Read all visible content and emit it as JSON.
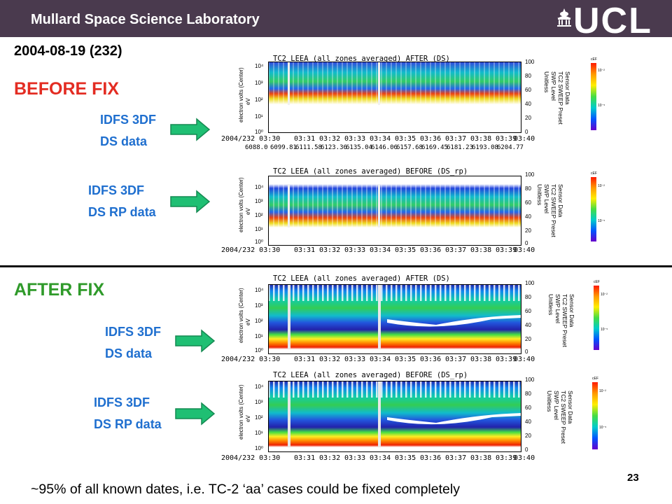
{
  "header": {
    "title": "Mullard Space Science Laboratory",
    "logo": "UCL",
    "logo_icon": "ucl-portico-icon"
  },
  "date": "2004-08-19 (232)",
  "before_label": "BEFORE FIX",
  "after_label": "AFTER FIX",
  "side_labels": [
    {
      "line1": "IDFS 3DF",
      "line2": "DS data"
    },
    {
      "line1": "IDFS 3DF",
      "line2": "DS RP data"
    },
    {
      "line1": "IDFS 3DF",
      "line2": "DS data"
    },
    {
      "line1": "IDFS 3DF",
      "line2": "DS RP data"
    }
  ],
  "plots": [
    {
      "title": "TC2 LEEA (all zones averaged) AFTER (DS)",
      "extra_ticks": [
        "6088.0",
        "6099.81",
        "6111.58",
        "6123.36",
        "6135.04",
        "6146.06",
        "6157.68",
        "6169.45",
        "6181.23",
        "6193.08",
        "6204.77"
      ]
    },
    {
      "title": "TC2 LEEA (all zones averaged) BEFORE (DS_rp)"
    },
    {
      "title": "TC2 LEEA (all zones averaged) AFTER (DS)"
    },
    {
      "title": "TC2 LEEA (all zones averaged) BEFORE (DS_rp)"
    }
  ],
  "plot_common": {
    "ylabel": "electron volts (Center)",
    "yunit": "eV",
    "yticks": [
      "10⁴",
      "10³",
      "10²",
      "10¹",
      "10⁰"
    ],
    "right_ticks": [
      "100",
      "80",
      "60",
      "40",
      "20",
      "0"
    ],
    "right_label_lines": [
      "Sensor Data",
      "TC2 SWEEP Preset",
      "SWP Level",
      "Unitless"
    ],
    "xticks": [
      "2004/232 03:30",
      "03:31",
      "03:32",
      "03:33",
      "03:34",
      "03:35",
      "03:36",
      "03:37",
      "03:38",
      "03:39",
      "03:40"
    ],
    "cbar_title": "cEF",
    "cbar_ticks": [
      "10⁻²",
      "10⁻⁵"
    ]
  },
  "footer": "~95% of all known dates, i.e. TC-2 ‘aa’ cases could be fixed completely",
  "page_number": "23"
}
